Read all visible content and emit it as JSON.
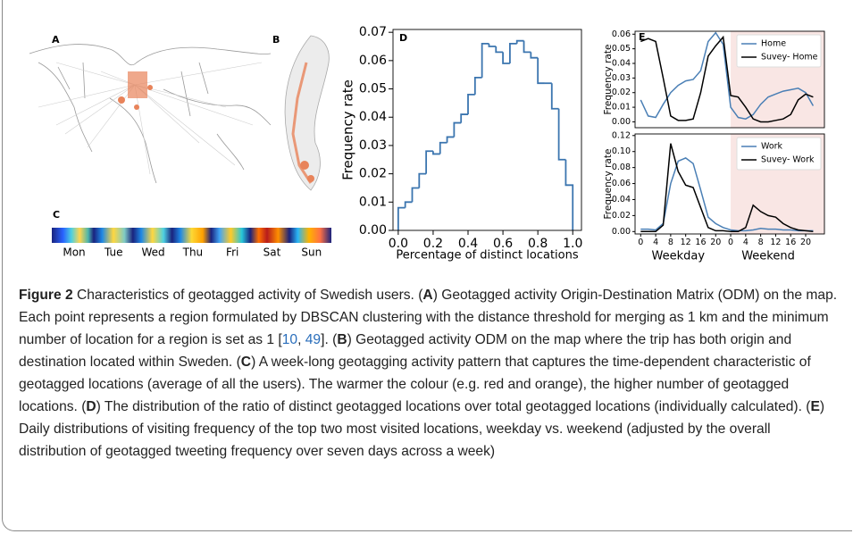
{
  "panel_labels": [
    "A",
    "B",
    "C",
    "D",
    "E"
  ],
  "panel_c": {
    "days": [
      "Mon",
      "Tue",
      "Wed",
      "Thu",
      "Fri",
      "Sat",
      "Sun"
    ]
  },
  "chart_data": [
    {
      "type": "histogram",
      "ylabel": "Frequency rate",
      "xlabel": "Percentage of distinct locations",
      "color": "#3b75af",
      "bins": [
        0,
        0.04,
        0.08,
        0.12,
        0.16,
        0.2,
        0.24,
        0.28,
        0.32,
        0.36,
        0.4,
        0.44,
        0.48,
        0.52,
        0.56,
        0.6,
        0.64,
        0.68,
        0.72,
        0.76,
        0.8,
        0.84,
        0.88,
        0.92,
        0.96,
        1.0
      ],
      "counts": [
        0.008,
        0.01,
        0.015,
        0.02,
        0.028,
        0.027,
        0.031,
        0.033,
        0.038,
        0.041,
        0.048,
        0.054,
        0.066,
        0.065,
        0.063,
        0.059,
        0.066,
        0.067,
        0.063,
        0.061,
        0.052,
        0.052,
        0.043,
        0.025,
        0.016
      ],
      "xlim": [
        -0.03,
        1.05
      ],
      "ylim": [
        0,
        0.071
      ],
      "xticks": [
        {
          "value": 0,
          "label": "0.0"
        },
        {
          "value": 0.2,
          "label": "0.2"
        },
        {
          "value": 0.4,
          "label": "0.4"
        },
        {
          "value": 0.6,
          "label": "0.6"
        },
        {
          "value": 0.8,
          "label": "0.8"
        },
        {
          "value": 1.0,
          "label": "1.0"
        }
      ],
      "yticks": [
        {
          "value": 0,
          "label": "0.00"
        },
        {
          "value": 0.01,
          "label": "0.01"
        },
        {
          "value": 0.02,
          "label": "0.02"
        },
        {
          "value": 0.03,
          "label": "0.03"
        },
        {
          "value": 0.04,
          "label": "0.04"
        },
        {
          "value": 0.05,
          "label": "0.05"
        },
        {
          "value": 0.06,
          "label": "0.06"
        },
        {
          "value": 0.07,
          "label": "0.07"
        }
      ]
    },
    {
      "type": "line",
      "ylabel": "Frequency rate",
      "legend": "upper right",
      "shaded_xrange": [
        24,
        49
      ],
      "x": [
        0,
        2,
        4,
        6,
        8,
        10,
        12,
        14,
        16,
        18,
        20,
        22,
        24,
        26,
        28,
        30,
        32,
        34,
        36,
        38,
        40,
        42,
        44,
        46
      ],
      "series": [
        {
          "name": "Home",
          "color": "#4a7fb5",
          "values": [
            0.015,
            0.004,
            0.003,
            0.012,
            0.02,
            0.025,
            0.028,
            0.029,
            0.035,
            0.055,
            0.061,
            0.053,
            0.01,
            0.003,
            0.002,
            0.005,
            0.012,
            0.017,
            0.019,
            0.021,
            0.022,
            0.023,
            0.02,
            0.011
          ]
        },
        {
          "name": "Suvey- Home",
          "color": "#000000",
          "values": [
            0.055,
            0.057,
            0.055,
            0.03,
            0.004,
            0.001,
            0.001,
            0.002,
            0.02,
            0.045,
            0.052,
            0.058,
            0.018,
            0.017,
            0.01,
            0.002,
            0.0,
            0.0,
            0.001,
            0.002,
            0.005,
            0.015,
            0.019,
            0.017
          ]
        }
      ],
      "xlim": [
        -1.5,
        49
      ],
      "ylim": [
        -0.004,
        0.062
      ],
      "yticks": [
        {
          "value": 0,
          "label": "0.00"
        },
        {
          "value": 0.01,
          "label": "0.01"
        },
        {
          "value": 0.02,
          "label": "0.02"
        },
        {
          "value": 0.03,
          "label": "0.03"
        },
        {
          "value": 0.04,
          "label": "0.04"
        },
        {
          "value": 0.05,
          "label": "0.05"
        },
        {
          "value": 0.06,
          "label": "0.06"
        }
      ]
    },
    {
      "type": "line",
      "ylabel": "Frequency rate",
      "legend": "upper right",
      "shaded_xrange": [
        24,
        49
      ],
      "x_group_labels": [
        "Weekday",
        "Weekend"
      ],
      "x": [
        0,
        2,
        4,
        6,
        8,
        10,
        12,
        14,
        16,
        18,
        20,
        22,
        24,
        26,
        28,
        30,
        32,
        34,
        36,
        38,
        40,
        42,
        44,
        46
      ],
      "series": [
        {
          "name": "Work",
          "color": "#4a7fb5",
          "values": [
            0.003,
            0.003,
            0.002,
            0.01,
            0.06,
            0.088,
            0.092,
            0.085,
            0.052,
            0.018,
            0.01,
            0.005,
            0.002,
            0.001,
            0.001,
            0.002,
            0.004,
            0.003,
            0.003,
            0.002,
            0.002,
            0.001,
            0.001,
            0.001
          ]
        },
        {
          "name": "Suvey- Work",
          "color": "#000000",
          "values": [
            0.0,
            0.0,
            0.0,
            0.008,
            0.11,
            0.075,
            0.058,
            0.055,
            0.03,
            0.005,
            0.001,
            0.001,
            0.0,
            0.0,
            0.005,
            0.033,
            0.025,
            0.02,
            0.018,
            0.01,
            0.005,
            0.002,
            0.001,
            0.0
          ]
        }
      ],
      "xlim": [
        -1.5,
        49
      ],
      "ylim": [
        -0.003,
        0.122
      ],
      "xticks": [
        0,
        4,
        8,
        12,
        16,
        20,
        {
          "value": 24,
          "label": "0"
        },
        {
          "value": 28,
          "label": "4"
        },
        {
          "value": 32,
          "label": "8"
        },
        {
          "value": 36,
          "label": "12"
        },
        {
          "value": 40,
          "label": "16"
        },
        {
          "value": 44,
          "label": "20"
        }
      ],
      "yticks": [
        {
          "value": 0,
          "label": "0.00"
        },
        {
          "value": 0.02,
          "label": "0.02"
        },
        {
          "value": 0.04,
          "label": "0.04"
        },
        {
          "value": 0.06,
          "label": "0.06"
        },
        {
          "value": 0.08,
          "label": "0.08"
        },
        {
          "value": 0.1,
          "label": "0.10"
        },
        {
          "value": 0.12,
          "label": "0.12"
        }
      ]
    }
  ],
  "caption": {
    "label": "Figure 2",
    "parts": [
      {
        "text": "  Characteristics of geotagged activity of Swedish users. ("
      },
      {
        "text": "A",
        "style": "bold"
      },
      {
        "text": ") Geotagged activity Origin-Destination Matrix (ODM) on the map. Each point represents a region formulated by DBSCAN clustering with the distance threshold for merging as 1 km and the minimum number of location for a region is set as 1 ["
      },
      {
        "text": "10",
        "style": "link"
      },
      {
        "text": ", "
      },
      {
        "text": "49",
        "style": "link"
      },
      {
        "text": "]. ("
      },
      {
        "text": "B",
        "style": "bold"
      },
      {
        "text": ") Geotagged activity ODM on the map where the trip has both origin and destination located within Sweden. ("
      },
      {
        "text": "C",
        "style": "bold"
      },
      {
        "text": ") A week-long geotagging activity pattern that captures the time-dependent characteristic of geotagged locations (average of all the users). The warmer the colour (e.g. red and orange), the higher number of geotagged locations. ("
      },
      {
        "text": "D",
        "style": "bold"
      },
      {
        "text": ") The distribution of the ratio of distinct geotagged locations over total geotagged locations (individually calculated). ("
      },
      {
        "text": "E",
        "style": "bold"
      },
      {
        "text": ") Daily distributions of visiting frequency of the top two most visited locations, weekday vs. weekend (adjusted by the overall distribution of geotagged tweeting frequency over seven days across a week)"
      }
    ]
  }
}
